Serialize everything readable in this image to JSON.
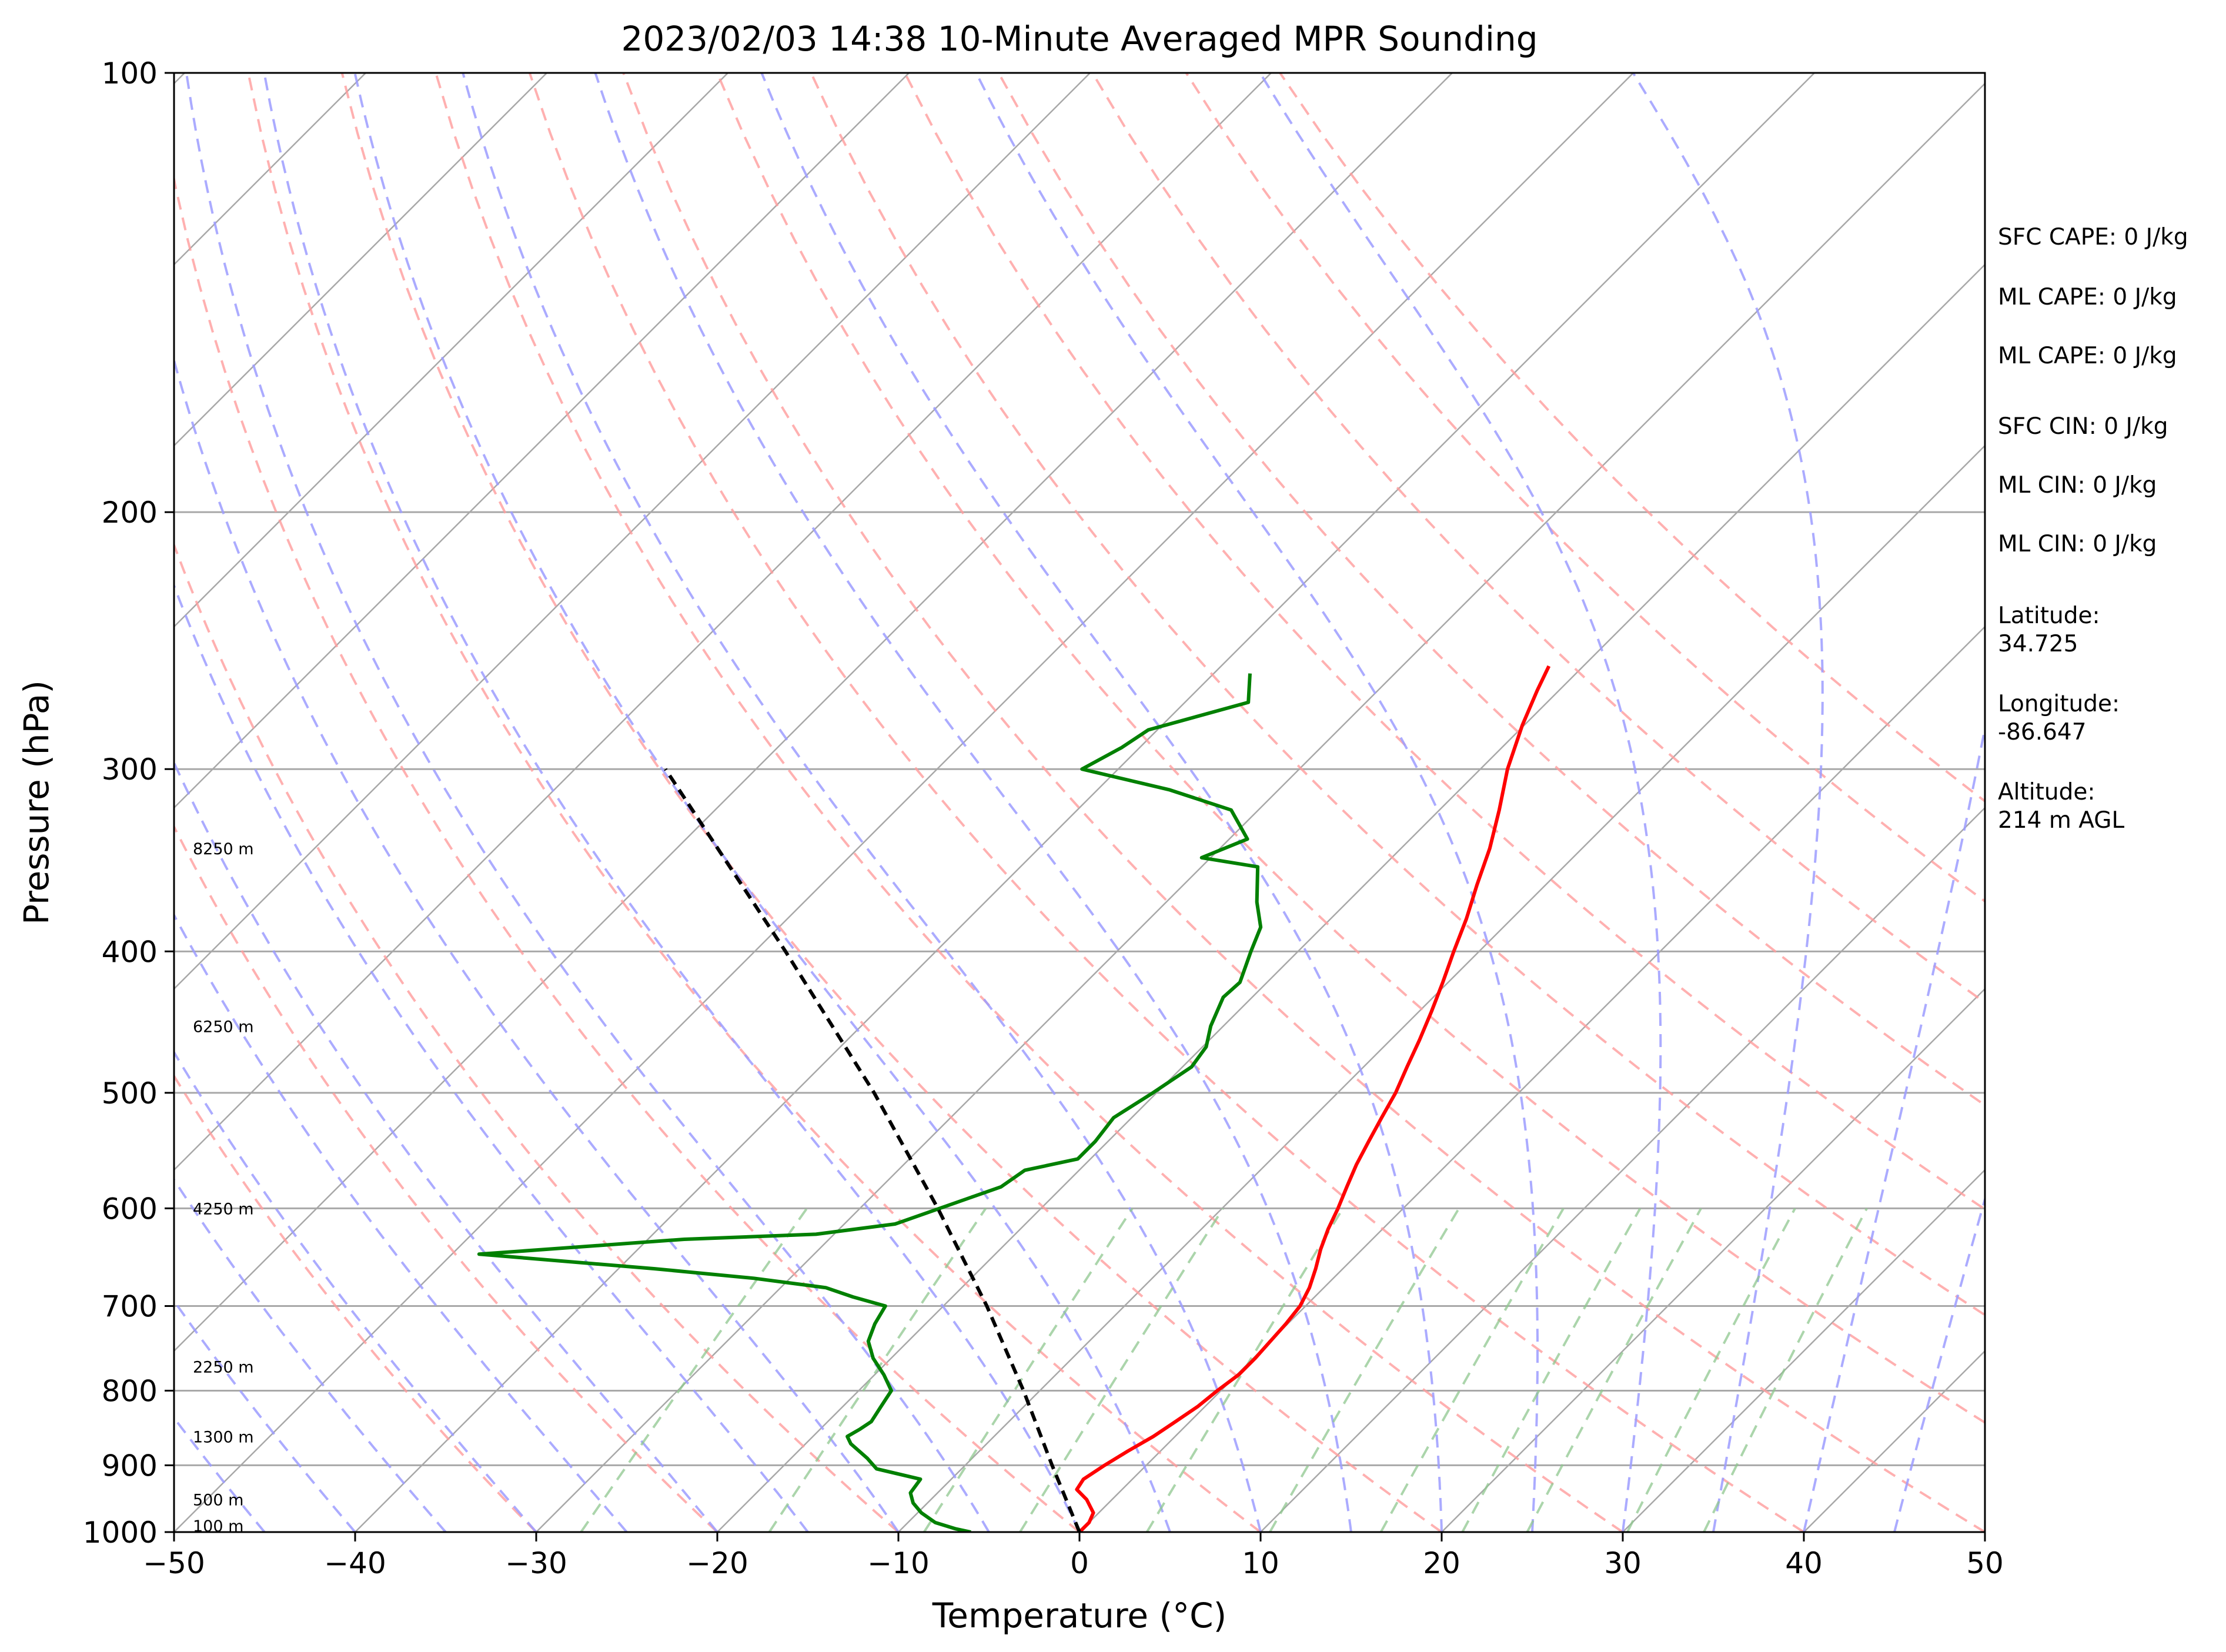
{
  "chart_data": {
    "type": "line",
    "title": "2023/02/03 14:38 10-Minute Averaged MPR Sounding",
    "xlabel": "Temperature (°C)",
    "ylabel": "Pressure (hPa)",
    "xlim": [
      -50,
      50
    ],
    "ylim": [
      1000,
      100
    ],
    "y_scale": "log",
    "skew": true,
    "grid": true,
    "x_ticks": [
      "−50",
      "−40",
      "−30",
      "−20",
      "−10",
      "0",
      "10",
      "20",
      "30",
      "40",
      "50"
    ],
    "y_ticks": [
      "100",
      "200",
      "300",
      "400",
      "500",
      "600",
      "700",
      "800",
      "900",
      "1000"
    ],
    "height_labels": [
      {
        "p": 990,
        "text": "100 m"
      },
      {
        "p": 950,
        "text": "500 m"
      },
      {
        "p": 860,
        "text": "1300 m"
      },
      {
        "p": 770,
        "text": "2250 m"
      },
      {
        "p": 600,
        "text": "4250 m"
      },
      {
        "p": 450,
        "text": "6250 m"
      },
      {
        "p": 340,
        "text": "8250 m"
      }
    ],
    "series": [
      {
        "color": "#ff0000",
        "points": [
          [
            1000,
            0
          ],
          [
            985,
            0
          ],
          [
            970,
            -0.3
          ],
          [
            950,
            -1.4
          ],
          [
            935,
            -2.5
          ],
          [
            920,
            -2.7
          ],
          [
            900,
            -2.3
          ],
          [
            880,
            -1.8
          ],
          [
            860,
            -1.2
          ],
          [
            840,
            -0.8
          ],
          [
            820,
            -0.4
          ],
          [
            800,
            -0.2
          ],
          [
            780,
            0.1
          ],
          [
            760,
            0.1
          ],
          [
            740,
            0
          ],
          [
            720,
            -0.1
          ],
          [
            700,
            -0.3
          ],
          [
            680,
            -0.8
          ],
          [
            660,
            -1.5
          ],
          [
            640,
            -2.3
          ],
          [
            620,
            -3.0
          ],
          [
            600,
            -3.6
          ],
          [
            580,
            -4.3
          ],
          [
            560,
            -5.0
          ],
          [
            540,
            -5.6
          ],
          [
            520,
            -6.2
          ],
          [
            500,
            -6.8
          ],
          [
            480,
            -7.6
          ],
          [
            460,
            -8.4
          ],
          [
            440,
            -9.3
          ],
          [
            420,
            -10.3
          ],
          [
            400,
            -11.4
          ],
          [
            380,
            -12.5
          ],
          [
            360,
            -13.8
          ],
          [
            340,
            -15.1
          ],
          [
            320,
            -16.7
          ],
          [
            300,
            -18.5
          ],
          [
            280,
            -20.1
          ],
          [
            265,
            -21.2
          ],
          [
            255,
            -21.9
          ]
        ]
      },
      {
        "color": "#008000",
        "points": [
          [
            1000,
            -6
          ],
          [
            995,
            -7
          ],
          [
            985,
            -8.5
          ],
          [
            970,
            -9.8
          ],
          [
            955,
            -10.8
          ],
          [
            940,
            -11.5
          ],
          [
            920,
            -11.7
          ],
          [
            905,
            -14.7
          ],
          [
            890,
            -15.8
          ],
          [
            870,
            -17.5
          ],
          [
            860,
            -18.1
          ],
          [
            850,
            -17.8
          ],
          [
            840,
            -17.6
          ],
          [
            820,
            -17.9
          ],
          [
            800,
            -18.2
          ],
          [
            780,
            -19.5
          ],
          [
            760,
            -21
          ],
          [
            740,
            -22.2
          ],
          [
            720,
            -22.8
          ],
          [
            700,
            -23.2
          ],
          [
            690,
            -25.5
          ],
          [
            680,
            -27.5
          ],
          [
            670,
            -32
          ],
          [
            660,
            -38
          ],
          [
            645,
            -48.5
          ],
          [
            640,
            -45
          ],
          [
            630,
            -38
          ],
          [
            625,
            -31
          ],
          [
            615,
            -27.2
          ],
          [
            600,
            -25.6
          ],
          [
            580,
            -23.4
          ],
          [
            565,
            -23.0
          ],
          [
            555,
            -20.7
          ],
          [
            540,
            -20.7
          ],
          [
            520,
            -21.0
          ],
          [
            500,
            -20.2
          ],
          [
            480,
            -19.5
          ],
          [
            465,
            -19.8
          ],
          [
            450,
            -20.7
          ],
          [
            430,
            -21.6
          ],
          [
            420,
            -21.5
          ],
          [
            400,
            -22.6
          ],
          [
            385,
            -23.4
          ],
          [
            370,
            -25.0
          ],
          [
            350,
            -26.9
          ],
          [
            345,
            -30.5
          ],
          [
            335,
            -29.0
          ],
          [
            320,
            -31.5
          ],
          [
            310,
            -36.0
          ],
          [
            300,
            -42.0
          ],
          [
            290,
            -41.0
          ],
          [
            282,
            -40.5
          ],
          [
            270,
            -36.5
          ],
          [
            258,
            -38.0
          ]
        ]
      },
      {
        "color": "#000000",
        "dash": true,
        "points": [
          [
            1000,
            0
          ],
          [
            900,
            -5.2
          ],
          [
            800,
            -10.9
          ],
          [
            700,
            -17.6
          ],
          [
            600,
            -25.7
          ],
          [
            500,
            -35.6
          ],
          [
            400,
            -48.3
          ],
          [
            300,
            -65
          ]
        ]
      }
    ],
    "info": [
      "SFC CAPE: 0 J/kg",
      "ML CAPE: 0 J/kg",
      "ML CAPE: 0 J/kg",
      "SFC CIN: 0 J/kg",
      "ML CIN: 0 J/kg",
      "ML CIN: 0 J/kg"
    ],
    "location": {
      "lat_label": "Latitude:",
      "lat_value": "34.725",
      "lon_label": "Longitude:",
      "lon_value": "-86.647",
      "alt_label": "Altitude:",
      "alt_value": "214 m AGL"
    },
    "colors": {
      "temperature": "#ff0000",
      "dewpoint": "#008000",
      "parcel": "#000000",
      "dry_adiabat": "#ff9c9c",
      "moist_adiabat": "#9c9cff",
      "mixing_ratio": "#8fc78f",
      "isotherm": "#a8a8a8"
    }
  }
}
